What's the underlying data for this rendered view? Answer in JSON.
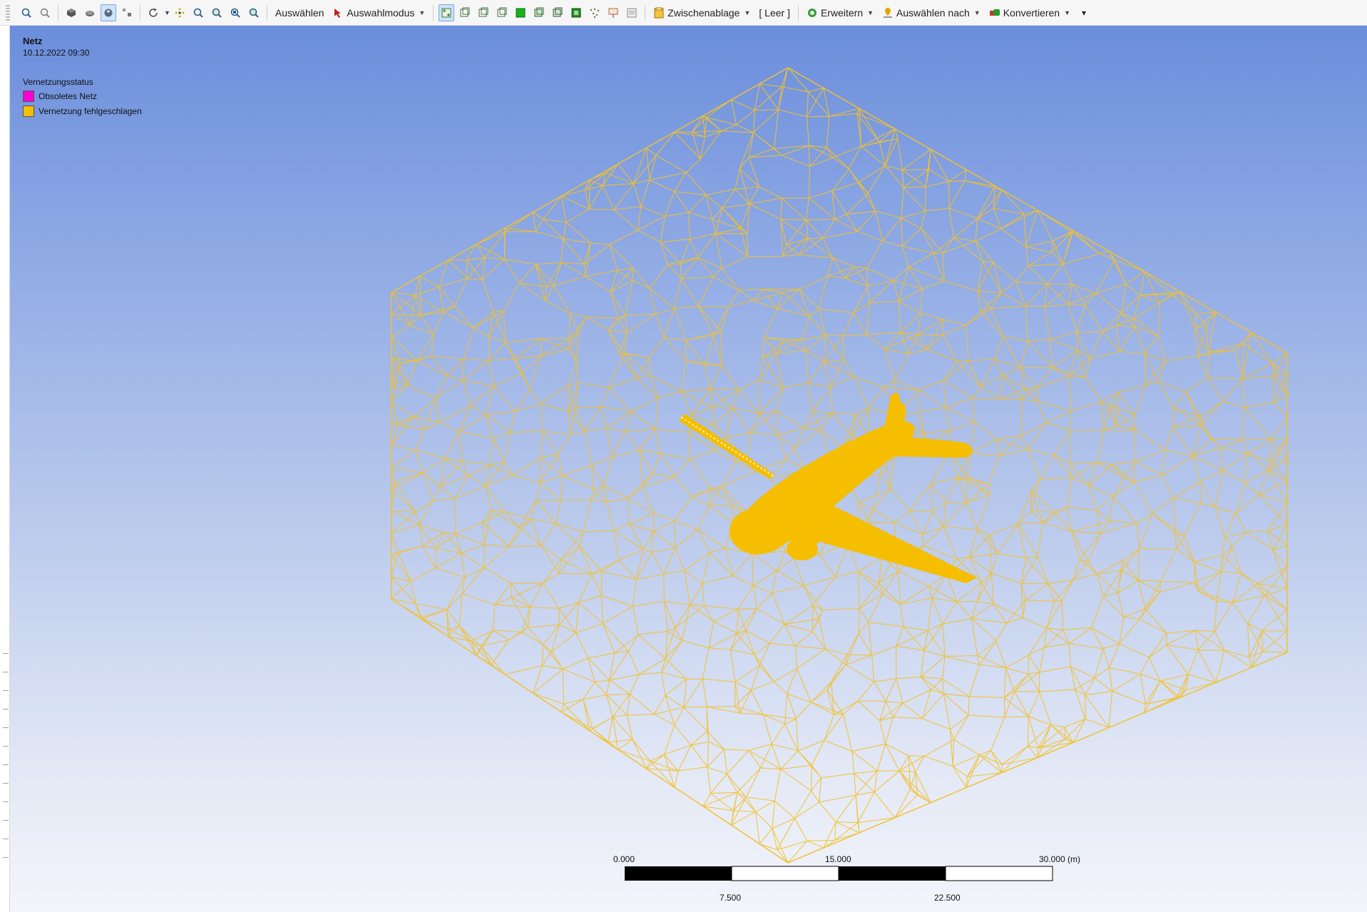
{
  "toolbar": {
    "select_label": "Auswählen",
    "select_mode_label": "Auswahlmodus",
    "clipboard_label": "Zwischenablage",
    "empty_label": "[ Leer ]",
    "extend_label": "Erweitern",
    "select_by_label": "Auswählen nach",
    "convert_label": "Konvertieren"
  },
  "info": {
    "title": "Netz",
    "date": "10.12.2022 09:30",
    "legend_title": "Vernetzungsstatus",
    "legend": [
      {
        "label": "Obsoletes Netz",
        "color": "#ff00d4"
      },
      {
        "label": "Vernetzung fehlgeschlagen",
        "color": "#f5be00"
      }
    ]
  },
  "scale": {
    "labels_top": [
      "0.000",
      "15.000",
      "30.000 (m)"
    ],
    "labels_bottom": [
      "7.500",
      "22.500"
    ]
  },
  "colors": {
    "mesh": "#f2c12c",
    "aircraft": "#f5be00"
  }
}
